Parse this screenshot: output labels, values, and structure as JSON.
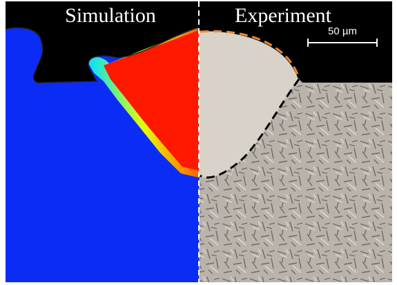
{
  "labels": {
    "left": "Simulation",
    "right": "Experiment"
  },
  "scale_bar": "50 µm"
}
